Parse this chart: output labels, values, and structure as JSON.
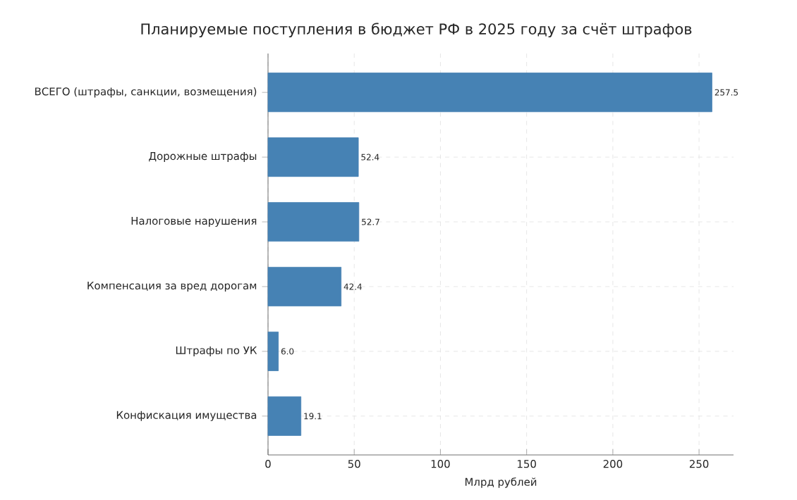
{
  "chart_data": {
    "type": "bar",
    "orientation": "horizontal",
    "title": "Планируемые поступления в бюджет РФ в 2025 году за счёт штрафов",
    "xlabel": "Млрд рублей",
    "categories": [
      "ВСЕГО (штрафы, санкции, возмещения)",
      "Дорожные штрафы",
      "Налоговые нарушения",
      "Компенсация за вред дорогам",
      "Штрафы по УК",
      "Конфискация имущества"
    ],
    "values": [
      257.5,
      52.4,
      52.7,
      42.4,
      6.0,
      19.1
    ],
    "color": "#4682b4",
    "xlim": [
      0,
      270
    ],
    "xticks": [
      0,
      50,
      100,
      150,
      200,
      250
    ],
    "grid": true,
    "value_labels": [
      "257.5",
      "52.4",
      "52.7",
      "42.4",
      "6.0",
      "19.1"
    ]
  }
}
